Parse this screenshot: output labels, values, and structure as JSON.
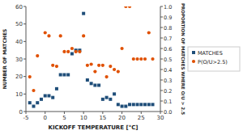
{
  "chart_data": {
    "type": "scatter",
    "xlabel": "KICKOFF TEMPERATURE [°C]",
    "ylabel": "NUMBER OF MATCHES",
    "y2label": "PROPORTION OF MATCHES WHERE O/U > 2.5",
    "xlim": [
      -5,
      30
    ],
    "xticks": [
      -5,
      0,
      5,
      10,
      15,
      20,
      25,
      30
    ],
    "ylim": [
      0,
      60
    ],
    "yticks": [
      0,
      10,
      20,
      30,
      40,
      50,
      60
    ],
    "y2lim": [
      0.0,
      1.0
    ],
    "y2ticks": [
      {
        "value": 0.0,
        "label": "0.0"
      },
      0.1,
      0.2,
      0.3,
      0.4,
      0.5,
      0.6,
      0.7,
      0.8,
      0.9,
      {
        "value": 1.0,
        "label": "1.0"
      }
    ],
    "grid": false,
    "legend": "right",
    "series": [
      {
        "name": "MATCHES",
        "color": "#1f4e79",
        "marker": "square",
        "x": [
          -4,
          -3,
          -2,
          -1,
          0,
          1,
          2,
          3,
          4,
          5,
          6,
          7,
          8,
          9,
          10,
          11,
          12,
          13,
          14,
          15,
          16,
          17,
          18,
          19,
          20,
          21,
          22,
          23,
          24,
          25,
          26,
          27,
          28
        ],
        "values": [
          5,
          3,
          5,
          7,
          9,
          9,
          8,
          13,
          21,
          21,
          21,
          33,
          35,
          35,
          56,
          18,
          16,
          15,
          15,
          7,
          8,
          7,
          10,
          4,
          3,
          3,
          4,
          4,
          4,
          4,
          4,
          4,
          4
        ]
      },
      {
        "name": "P(O/U>2.5)",
        "color": "#e05000",
        "marker": "circle",
        "axis": "y2",
        "x": [
          -4,
          -3,
          -2,
          0,
          1,
          2,
          3,
          4,
          5,
          6,
          7,
          8,
          9,
          10,
          11,
          12,
          13,
          14,
          15,
          16,
          17,
          18,
          19,
          20,
          21,
          22,
          23,
          24,
          25,
          26,
          27,
          28
        ],
        "values": [
          0.33,
          0.2,
          0.53,
          0.75,
          0.72,
          0.44,
          0.43,
          0.72,
          0.57,
          0.57,
          0.6,
          0.57,
          0.57,
          0.72,
          0.44,
          0.45,
          0.38,
          0.44,
          0.44,
          0.33,
          0.43,
          0.4,
          0.38,
          0.6,
          1.0,
          1.0,
          0.5,
          0.5,
          0.5,
          0.5,
          0.75,
          0.5
        ]
      }
    ]
  }
}
